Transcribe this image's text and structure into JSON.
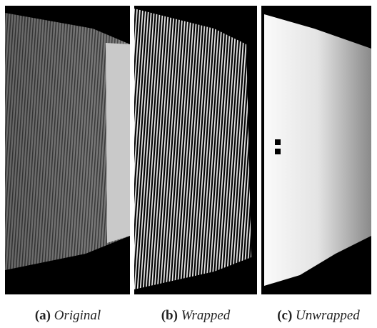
{
  "panels": [
    {
      "label": "(a)",
      "caption": "Original"
    },
    {
      "label": "(b)",
      "caption": "Wrapped"
    },
    {
      "label": "(c)",
      "caption": "Unwrapped"
    }
  ]
}
